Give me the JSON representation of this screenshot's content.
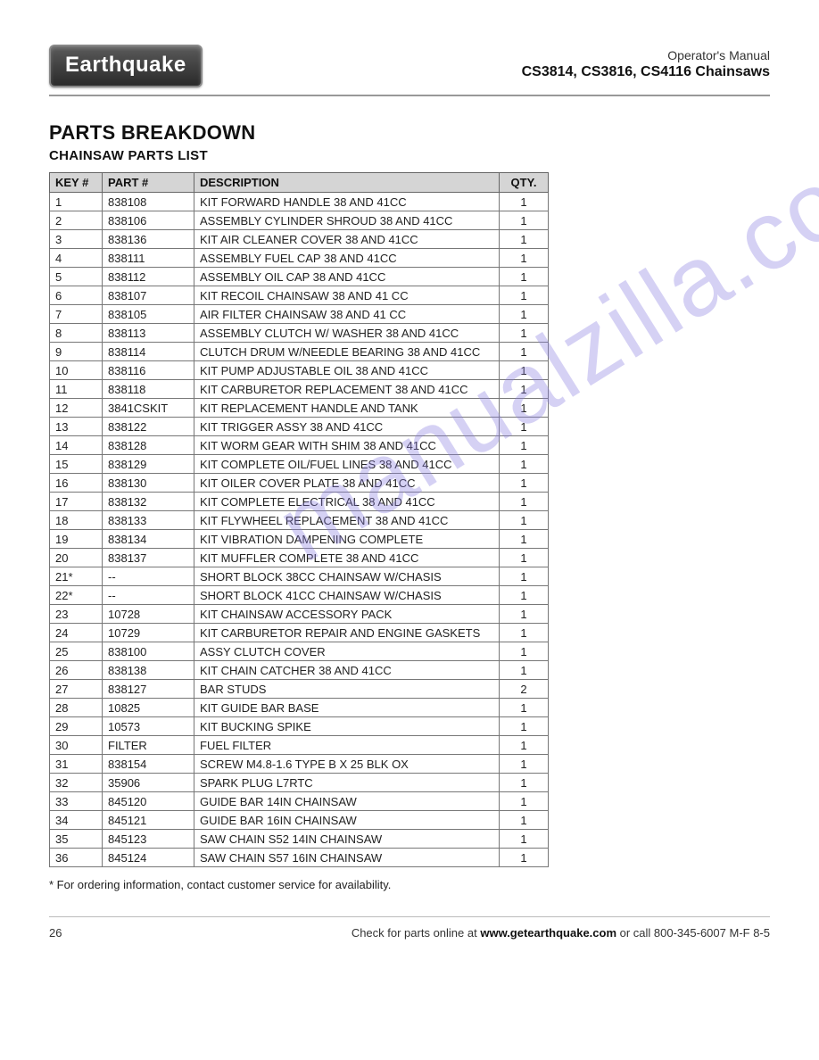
{
  "header": {
    "logo_text": "Earthquake",
    "manual_line": "Operator's Manual",
    "models_line": "CS3814, CS3816, CS4116 Chainsaws"
  },
  "headings": {
    "section": "PARTS BREAKDOWN",
    "subsection": "CHAINSAW PARTS LIST"
  },
  "table": {
    "columns": {
      "key": "KEY #",
      "part": "PART #",
      "desc": "DESCRIPTION",
      "qty": "QTY."
    },
    "col_widths": {
      "key": 46,
      "part": 90,
      "desc": "auto",
      "qty": 42
    },
    "header_bg": "#d5d5d5",
    "border_color": "#777",
    "font_size": 13,
    "rows": [
      {
        "key": "1",
        "part": "838108",
        "desc": "KIT FORWARD HANDLE 38 AND 41CC",
        "qty": "1"
      },
      {
        "key": "2",
        "part": "838106",
        "desc": "ASSEMBLY CYLINDER SHROUD 38 AND 41CC",
        "qty": "1"
      },
      {
        "key": "3",
        "part": "838136",
        "desc": "KIT AIR CLEANER COVER 38 AND 41CC",
        "qty": "1"
      },
      {
        "key": "4",
        "part": "838111",
        "desc": "ASSEMBLY FUEL CAP 38 AND 41CC",
        "qty": "1"
      },
      {
        "key": "5",
        "part": "838112",
        "desc": "ASSEMBLY OIL CAP 38 AND 41CC",
        "qty": "1"
      },
      {
        "key": "6",
        "part": "838107",
        "desc": "KIT RECOIL CHAINSAW 38 AND 41 CC",
        "qty": "1"
      },
      {
        "key": "7",
        "part": "838105",
        "desc": "AIR FILTER CHAINSAW 38 AND 41 CC",
        "qty": "1"
      },
      {
        "key": "8",
        "part": "838113",
        "desc": "ASSEMBLY CLUTCH W/ WASHER 38 AND 41CC",
        "qty": "1"
      },
      {
        "key": "9",
        "part": "838114",
        "desc": "CLUTCH DRUM W/NEEDLE BEARING 38 AND 41CC",
        "qty": "1"
      },
      {
        "key": "10",
        "part": "838116",
        "desc": "KIT PUMP ADJUSTABLE OIL 38 AND 41CC",
        "qty": "1"
      },
      {
        "key": "11",
        "part": "838118",
        "desc": "KIT CARBURETOR REPLACEMENT 38 AND 41CC",
        "qty": "1"
      },
      {
        "key": "12",
        "part": "3841CSKIT",
        "desc": "KIT REPLACEMENT HANDLE AND TANK",
        "qty": "1"
      },
      {
        "key": "13",
        "part": "838122",
        "desc": "KIT TRIGGER ASSY 38 AND 41CC",
        "qty": "1"
      },
      {
        "key": "14",
        "part": "838128",
        "desc": "KIT WORM GEAR WITH SHIM 38 AND 41CC",
        "qty": "1"
      },
      {
        "key": "15",
        "part": "838129",
        "desc": "KIT COMPLETE OIL/FUEL LINES 38 AND 41CC",
        "qty": "1"
      },
      {
        "key": "16",
        "part": "838130",
        "desc": "KIT OILER COVER PLATE 38 AND 41CC",
        "qty": "1"
      },
      {
        "key": "17",
        "part": "838132",
        "desc": "KIT COMPLETE ELECTRICAL 38 AND 41CC",
        "qty": "1"
      },
      {
        "key": "18",
        "part": "838133",
        "desc": "KIT FLYWHEEL REPLACEMENT 38 AND 41CC",
        "qty": "1"
      },
      {
        "key": "19",
        "part": "838134",
        "desc": "KIT VIBRATION DAMPENING COMPLETE",
        "qty": "1"
      },
      {
        "key": "20",
        "part": "838137",
        "desc": "KIT MUFFLER COMPLETE 38 AND 41CC",
        "qty": "1"
      },
      {
        "key": "21*",
        "part": "--",
        "desc": "SHORT BLOCK 38CC CHAINSAW W/CHASIS",
        "qty": "1"
      },
      {
        "key": "22*",
        "part": "--",
        "desc": "SHORT BLOCK 41CC CHAINSAW W/CHASIS",
        "qty": "1"
      },
      {
        "key": "23",
        "part": "10728",
        "desc": "KIT CHAINSAW ACCESSORY PACK",
        "qty": "1"
      },
      {
        "key": "24",
        "part": "10729",
        "desc": "KIT CARBURETOR REPAIR AND ENGINE GASKETS",
        "qty": "1"
      },
      {
        "key": "25",
        "part": "838100",
        "desc": "ASSY CLUTCH COVER",
        "qty": "1"
      },
      {
        "key": "26",
        "part": "838138",
        "desc": "KIT CHAIN CATCHER 38 AND 41CC",
        "qty": "1"
      },
      {
        "key": "27",
        "part": "838127",
        "desc": "BAR STUDS",
        "qty": "2"
      },
      {
        "key": "28",
        "part": "10825",
        "desc": "KIT GUIDE BAR BASE",
        "qty": "1"
      },
      {
        "key": "29",
        "part": "10573",
        "desc": "KIT BUCKING SPIKE",
        "qty": "1"
      },
      {
        "key": "30",
        "part": "FILTER",
        "desc": "FUEL FILTER",
        "qty": "1"
      },
      {
        "key": "31",
        "part": "838154",
        "desc": "SCREW M4.8-1.6 TYPE B X 25 BLK OX",
        "qty": "1"
      },
      {
        "key": "32",
        "part": "35906",
        "desc": "SPARK PLUG L7RTC",
        "qty": "1"
      },
      {
        "key": "33",
        "part": "845120",
        "desc": "GUIDE BAR 14IN CHAINSAW",
        "qty": "1"
      },
      {
        "key": "34",
        "part": "845121",
        "desc": "GUIDE BAR 16IN CHAINSAW",
        "qty": "1"
      },
      {
        "key": "35",
        "part": "845123",
        "desc": "SAW CHAIN S52 14IN CHAINSAW",
        "qty": "1"
      },
      {
        "key": "36",
        "part": "845124",
        "desc": "SAW CHAIN S57 16IN CHAINSAW",
        "qty": "1"
      }
    ]
  },
  "footnote": "* For ordering information, contact customer service for availability.",
  "footer": {
    "page_number": "26",
    "text_prefix": "Check for parts online at ",
    "url_bold": "www.getearthquake.com",
    "text_suffix": " or call 800-345-6007 M-F 8-5"
  },
  "watermark": {
    "text": "manualzilla.com",
    "color": "#8a7de0",
    "opacity": 0.35,
    "rotate_deg": -32,
    "font_size": 110
  }
}
